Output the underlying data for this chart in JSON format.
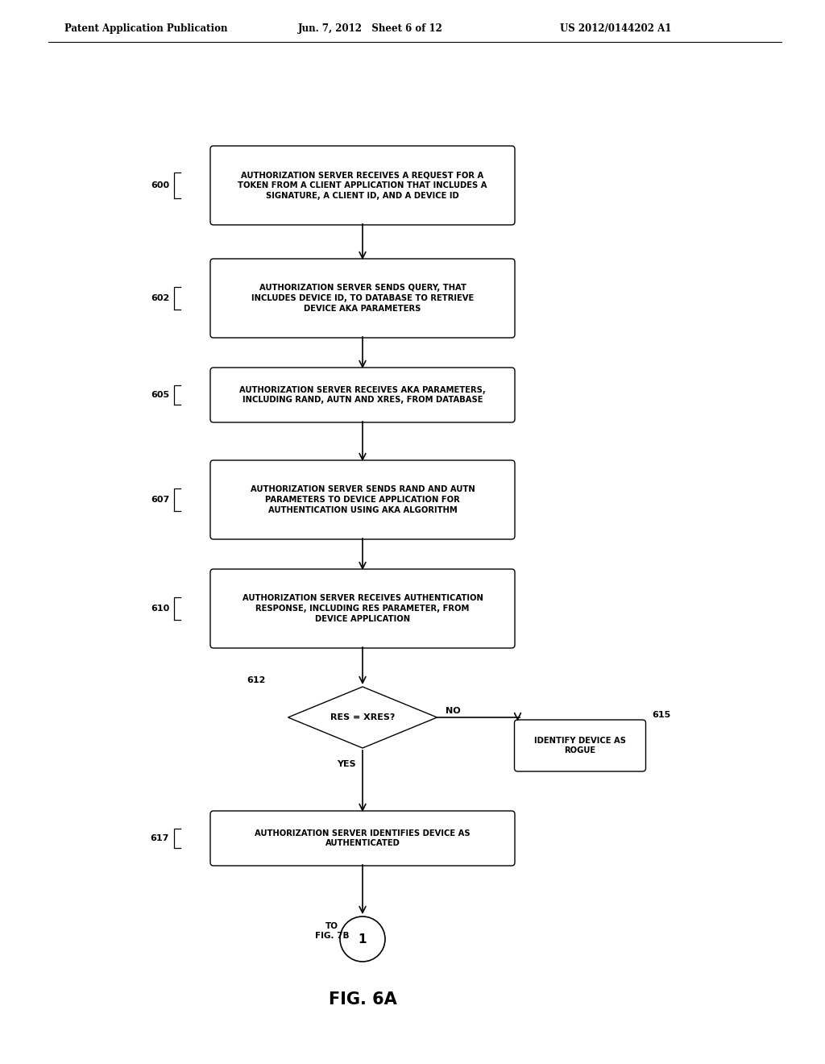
{
  "bg_color": "#ffffff",
  "header_left": "Patent Application Publication",
  "header_mid": "Jun. 7, 2012   Sheet 6 of 12",
  "header_right": "US 2012/0144202 A1",
  "figure_label": "FIG. 6A",
  "text_color": "#000000",
  "font_size_box": 7.2,
  "font_size_label": 8.0,
  "font_size_header": 8.5,
  "font_size_fig": 15
}
